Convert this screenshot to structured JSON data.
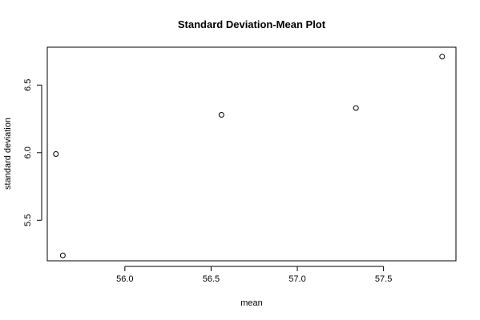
{
  "chart_data": {
    "type": "scatter",
    "title": "Standard Deviation-Mean Plot",
    "xlabel": "mean",
    "ylabel": "standard deviation",
    "x_ticks": [
      56.0,
      56.5,
      57.0,
      57.5
    ],
    "x_tick_labels": [
      "56.0",
      "56.5",
      "57.0",
      "57.5"
    ],
    "y_ticks": [
      5.5,
      6.0,
      6.5
    ],
    "y_tick_labels": [
      "5.5",
      "6.0",
      "6.5"
    ],
    "xlim": [
      55.55,
      57.92
    ],
    "ylim": [
      5.2,
      6.78
    ],
    "grid": false,
    "series": [
      {
        "points": [
          {
            "x": 55.6,
            "y": 5.99
          },
          {
            "x": 55.64,
            "y": 5.24
          },
          {
            "x": 56.56,
            "y": 6.28
          },
          {
            "x": 57.34,
            "y": 6.33
          },
          {
            "x": 57.84,
            "y": 6.71
          }
        ]
      }
    ]
  }
}
